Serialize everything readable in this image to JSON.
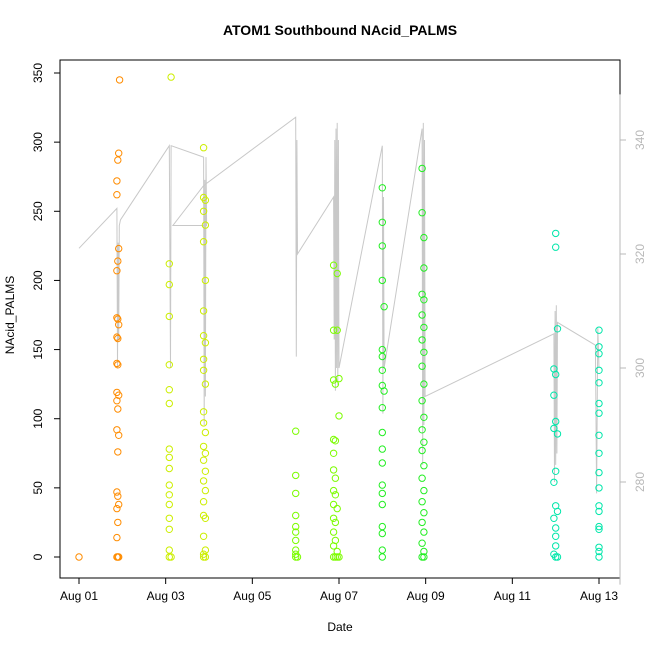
{
  "chart_data": {
    "type": "scatter",
    "title": "ATOM1 Southbound NAcid_PALMS",
    "xlabel": "Date",
    "ylabel": "NAcid_PALMS",
    "xlim": [
      "2016-08-01",
      "2016-08-13"
    ],
    "ylim": [
      0,
      350
    ],
    "x_ticks": [
      "Aug 01",
      "Aug 03",
      "Aug 05",
      "Aug 07",
      "Aug 09",
      "Aug 11",
      "Aug 13"
    ],
    "y_ticks": [
      0,
      50,
      100,
      150,
      200,
      250,
      300,
      350
    ],
    "y2_ticks": [
      280,
      300,
      320,
      340
    ],
    "y2_lim": [
      262,
      348
    ],
    "series": [
      {
        "color": "#ff8c00",
        "points": [
          [
            "2016-08-01T00:00",
            0
          ],
          [
            "2016-08-01T21:00",
            272
          ],
          [
            "2016-08-01T21:30",
            287
          ],
          [
            "2016-08-01T22:00",
            292
          ],
          [
            "2016-08-01T22:30",
            345
          ],
          [
            "2016-08-01T21:00",
            262
          ],
          [
            "2016-08-01T22:00",
            223
          ],
          [
            "2016-08-01T21:30",
            214
          ],
          [
            "2016-08-01T21:00",
            207
          ],
          [
            "2016-08-01T21:00",
            173
          ],
          [
            "2016-08-01T21:30",
            172
          ],
          [
            "2016-08-01T22:00",
            168
          ],
          [
            "2016-08-01T21:00",
            159
          ],
          [
            "2016-08-01T21:30",
            158
          ],
          [
            "2016-08-01T21:00",
            140
          ],
          [
            "2016-08-01T21:30",
            139
          ],
          [
            "2016-08-01T21:00",
            119
          ],
          [
            "2016-08-01T22:00",
            117
          ],
          [
            "2016-08-01T21:00",
            113
          ],
          [
            "2016-08-01T21:30",
            107
          ],
          [
            "2016-08-01T21:00",
            92
          ],
          [
            "2016-08-01T22:00",
            88
          ],
          [
            "2016-08-01T21:30",
            76
          ],
          [
            "2016-08-01T21:00",
            47
          ],
          [
            "2016-08-01T21:30",
            44
          ],
          [
            "2016-08-01T22:00",
            38
          ],
          [
            "2016-08-01T21:00",
            35
          ],
          [
            "2016-08-01T21:30",
            25
          ],
          [
            "2016-08-01T21:00",
            14
          ],
          [
            "2016-08-01T21:00",
            0
          ],
          [
            "2016-08-01T21:30",
            0
          ],
          [
            "2016-08-01T22:00",
            0
          ]
        ]
      },
      {
        "color": "#ccee00",
        "points": [
          [
            "2016-08-03T03:00",
            347
          ],
          [
            "2016-08-03T02:00",
            212
          ],
          [
            "2016-08-03T02:00",
            197
          ],
          [
            "2016-08-03T02:00",
            174
          ],
          [
            "2016-08-03T02:00",
            139
          ],
          [
            "2016-08-03T02:00",
            121
          ],
          [
            "2016-08-03T02:00",
            111
          ],
          [
            "2016-08-03T02:00",
            78
          ],
          [
            "2016-08-03T02:00",
            72
          ],
          [
            "2016-08-03T02:00",
            64
          ],
          [
            "2016-08-03T02:00",
            52
          ],
          [
            "2016-08-03T02:00",
            45
          ],
          [
            "2016-08-03T02:00",
            38
          ],
          [
            "2016-08-03T02:00",
            28
          ],
          [
            "2016-08-03T02:00",
            20
          ],
          [
            "2016-08-03T02:00",
            5
          ],
          [
            "2016-08-03T02:00",
            0
          ],
          [
            "2016-08-03T03:00",
            0
          ],
          [
            "2016-08-03T21:00",
            296
          ],
          [
            "2016-08-03T21:00",
            260
          ],
          [
            "2016-08-03T22:00",
            258
          ],
          [
            "2016-08-03T21:00",
            250
          ],
          [
            "2016-08-03T22:00",
            240
          ],
          [
            "2016-08-03T21:00",
            228
          ],
          [
            "2016-08-03T22:00",
            200
          ],
          [
            "2016-08-03T21:00",
            178
          ],
          [
            "2016-08-03T21:00",
            160
          ],
          [
            "2016-08-03T22:00",
            155
          ],
          [
            "2016-08-03T21:00",
            143
          ],
          [
            "2016-08-03T21:00",
            135
          ],
          [
            "2016-08-03T22:00",
            125
          ],
          [
            "2016-08-03T21:00",
            105
          ],
          [
            "2016-08-03T21:00",
            97
          ],
          [
            "2016-08-03T22:00",
            90
          ],
          [
            "2016-08-03T21:00",
            80
          ],
          [
            "2016-08-03T22:00",
            75
          ],
          [
            "2016-08-03T21:00",
            70
          ],
          [
            "2016-08-03T22:00",
            62
          ],
          [
            "2016-08-03T21:00",
            55
          ],
          [
            "2016-08-03T22:00",
            48
          ],
          [
            "2016-08-03T21:00",
            40
          ],
          [
            "2016-08-03T21:00",
            30
          ],
          [
            "2016-08-03T22:00",
            28
          ],
          [
            "2016-08-03T21:00",
            15
          ],
          [
            "2016-08-03T22:00",
            5
          ],
          [
            "2016-08-03T21:00",
            2
          ],
          [
            "2016-08-03T21:00",
            0
          ],
          [
            "2016-08-03T22:00",
            0
          ]
        ]
      },
      {
        "color": "#7cfc00",
        "points": [
          [
            "2016-08-06T00:00",
            91
          ],
          [
            "2016-08-06T00:00",
            59
          ],
          [
            "2016-08-06T00:00",
            46
          ],
          [
            "2016-08-06T00:00",
            30
          ],
          [
            "2016-08-06T00:00",
            22
          ],
          [
            "2016-08-06T00:00",
            18
          ],
          [
            "2016-08-06T00:00",
            12
          ],
          [
            "2016-08-06T00:00",
            5
          ],
          [
            "2016-08-06T00:00",
            2
          ],
          [
            "2016-08-06T00:00",
            0
          ],
          [
            "2016-08-06T01:00",
            0
          ],
          [
            "2016-08-06T21:00",
            211
          ],
          [
            "2016-08-06T23:00",
            205
          ],
          [
            "2016-08-06T21:00",
            164
          ],
          [
            "2016-08-06T23:00",
            164
          ],
          [
            "2016-08-06T21:00",
            128
          ],
          [
            "2016-08-06T22:00",
            125
          ],
          [
            "2016-08-07T00:00",
            129
          ],
          [
            "2016-08-07T00:00",
            102
          ],
          [
            "2016-08-06T21:00",
            85
          ],
          [
            "2016-08-06T22:00",
            84
          ],
          [
            "2016-08-06T21:00",
            75
          ],
          [
            "2016-08-06T21:00",
            63
          ],
          [
            "2016-08-06T22:00",
            57
          ],
          [
            "2016-08-06T21:00",
            48
          ],
          [
            "2016-08-06T22:00",
            45
          ],
          [
            "2016-08-06T21:00",
            38
          ],
          [
            "2016-08-06T23:00",
            35
          ],
          [
            "2016-08-06T21:00",
            28
          ],
          [
            "2016-08-06T22:00",
            25
          ],
          [
            "2016-08-06T21:00",
            18
          ],
          [
            "2016-08-06T22:00",
            12
          ],
          [
            "2016-08-06T21:00",
            8
          ],
          [
            "2016-08-06T23:00",
            4
          ],
          [
            "2016-08-06T21:00",
            0
          ],
          [
            "2016-08-06T22:00",
            0
          ],
          [
            "2016-08-06T23:00",
            0
          ],
          [
            "2016-08-07T00:00",
            0
          ]
        ]
      },
      {
        "color": "#22ee22",
        "points": [
          [
            "2016-08-08T00:00",
            267
          ],
          [
            "2016-08-08T00:00",
            242
          ],
          [
            "2016-08-08T00:00",
            225
          ],
          [
            "2016-08-08T00:00",
            200
          ],
          [
            "2016-08-08T01:00",
            181
          ],
          [
            "2016-08-08T00:00",
            150
          ],
          [
            "2016-08-08T00:00",
            145
          ],
          [
            "2016-08-08T00:00",
            135
          ],
          [
            "2016-08-08T00:00",
            124
          ],
          [
            "2016-08-08T01:00",
            120
          ],
          [
            "2016-08-08T00:00",
            108
          ],
          [
            "2016-08-08T00:00",
            90
          ],
          [
            "2016-08-08T00:00",
            78
          ],
          [
            "2016-08-08T00:00",
            68
          ],
          [
            "2016-08-08T00:00",
            52
          ],
          [
            "2016-08-08T00:00",
            46
          ],
          [
            "2016-08-08T00:00",
            38
          ],
          [
            "2016-08-08T00:00",
            22
          ],
          [
            "2016-08-08T00:00",
            17
          ],
          [
            "2016-08-08T00:00",
            5
          ],
          [
            "2016-08-08T00:00",
            0
          ],
          [
            "2016-08-08T22:00",
            281
          ],
          [
            "2016-08-08T22:00",
            249
          ],
          [
            "2016-08-08T23:00",
            231
          ],
          [
            "2016-08-08T23:00",
            209
          ],
          [
            "2016-08-08T22:00",
            190
          ],
          [
            "2016-08-08T23:00",
            186
          ],
          [
            "2016-08-08T22:00",
            175
          ],
          [
            "2016-08-08T23:00",
            166
          ],
          [
            "2016-08-08T22:00",
            157
          ],
          [
            "2016-08-08T23:00",
            148
          ],
          [
            "2016-08-08T22:00",
            138
          ],
          [
            "2016-08-08T23:00",
            125
          ],
          [
            "2016-08-08T22:00",
            113
          ],
          [
            "2016-08-08T23:00",
            101
          ],
          [
            "2016-08-08T22:00",
            92
          ],
          [
            "2016-08-08T23:00",
            83
          ],
          [
            "2016-08-08T22:00",
            77
          ],
          [
            "2016-08-08T23:00",
            66
          ],
          [
            "2016-08-08T22:00",
            57
          ],
          [
            "2016-08-08T23:00",
            48
          ],
          [
            "2016-08-08T22:00",
            40
          ],
          [
            "2016-08-08T23:00",
            32
          ],
          [
            "2016-08-08T22:00",
            25
          ],
          [
            "2016-08-08T23:00",
            18
          ],
          [
            "2016-08-08T22:00",
            10
          ],
          [
            "2016-08-08T23:00",
            4
          ],
          [
            "2016-08-08T22:00",
            0
          ],
          [
            "2016-08-08T23:00",
            0
          ]
        ]
      },
      {
        "color": "#00e6aa",
        "points": [
          [
            "2016-08-12T00:00",
            234
          ],
          [
            "2016-08-12T00:00",
            224
          ],
          [
            "2016-08-12T01:00",
            165
          ],
          [
            "2016-08-11T23:00",
            136
          ],
          [
            "2016-08-12T00:00",
            132
          ],
          [
            "2016-08-11T23:00",
            117
          ],
          [
            "2016-08-12T00:00",
            98
          ],
          [
            "2016-08-11T23:00",
            93
          ],
          [
            "2016-08-12T01:00",
            89
          ],
          [
            "2016-08-12T00:00",
            62
          ],
          [
            "2016-08-11T23:00",
            54
          ],
          [
            "2016-08-12T00:00",
            37
          ],
          [
            "2016-08-12T01:00",
            33
          ],
          [
            "2016-08-11T23:00",
            28
          ],
          [
            "2016-08-12T00:00",
            21
          ],
          [
            "2016-08-12T00:00",
            15
          ],
          [
            "2016-08-12T00:00",
            8
          ],
          [
            "2016-08-11T23:00",
            2
          ],
          [
            "2016-08-12T00:00",
            0
          ],
          [
            "2016-08-12T01:00",
            0
          ],
          [
            "2016-08-13T00:00",
            164
          ],
          [
            "2016-08-13T00:00",
            152
          ],
          [
            "2016-08-13T00:00",
            147
          ],
          [
            "2016-08-13T00:00",
            135
          ],
          [
            "2016-08-13T00:00",
            126
          ],
          [
            "2016-08-13T00:00",
            111
          ],
          [
            "2016-08-13T00:00",
            104
          ],
          [
            "2016-08-13T00:00",
            88
          ],
          [
            "2016-08-13T00:00",
            75
          ],
          [
            "2016-08-13T00:00",
            61
          ],
          [
            "2016-08-13T00:00",
            50
          ],
          [
            "2016-08-13T00:00",
            37
          ],
          [
            "2016-08-13T00:00",
            33
          ],
          [
            "2016-08-13T00:00",
            22
          ],
          [
            "2016-08-13T00:00",
            20
          ],
          [
            "2016-08-13T00:00",
            7
          ],
          [
            "2016-08-13T00:00",
            4
          ],
          [
            "2016-08-13T00:00",
            0
          ]
        ]
      }
    ],
    "secondary_line": {
      "color": "#c8c8c8",
      "axis": "right",
      "points": [
        [
          "2016-08-01T00:00",
          321
        ],
        [
          "2016-08-01T21:00",
          328
        ],
        [
          "2016-08-01T21:20",
          300
        ],
        [
          "2016-08-01T21:40",
          322
        ],
        [
          "2016-08-01T22:00",
          305
        ],
        [
          "2016-08-01T22:20",
          325
        ],
        [
          "2016-08-01T23:00",
          326
        ],
        [
          "2016-08-03T02:00",
          339
        ],
        [
          "2016-08-03T02:40",
          300
        ],
        [
          "2016-08-03T03:00",
          339
        ],
        [
          "2016-08-03T21:00",
          337
        ],
        [
          "2016-08-03T21:20",
          290
        ],
        [
          "2016-08-03T21:40",
          333
        ],
        [
          "2016-08-03T22:00",
          295
        ],
        [
          "2016-08-03T22:20",
          337
        ],
        [
          "2016-08-03T22:40",
          325
        ],
        [
          "2016-08-03T04:00",
          325
        ],
        [
          "2016-08-03T21:00",
          332
        ],
        [
          "2016-08-06T00:00",
          344
        ],
        [
          "2016-08-06T00:20",
          302
        ],
        [
          "2016-08-06T00:40",
          340
        ],
        [
          "2016-08-06T01:00",
          320
        ],
        [
          "2016-08-06T21:00",
          330
        ],
        [
          "2016-08-06T21:20",
          305
        ],
        [
          "2016-08-06T21:40",
          340
        ],
        [
          "2016-08-06T22:00",
          296
        ],
        [
          "2016-08-06T22:20",
          342
        ],
        [
          "2016-08-06T22:40",
          300
        ],
        [
          "2016-08-06T23:00",
          343
        ],
        [
          "2016-08-06T23:20",
          297
        ],
        [
          "2016-08-06T23:40",
          340
        ],
        [
          "2016-08-07T00:00",
          300
        ],
        [
          "2016-08-08T00:00",
          339
        ],
        [
          "2016-08-08T00:20",
          292
        ],
        [
          "2016-08-08T00:40",
          330
        ],
        [
          "2016-08-08T01:00",
          300
        ],
        [
          "2016-08-08T22:00",
          342
        ],
        [
          "2016-08-08T22:20",
          283
        ],
        [
          "2016-08-08T22:40",
          343
        ],
        [
          "2016-08-08T23:00",
          290
        ],
        [
          "2016-08-08T23:20",
          340
        ],
        [
          "2016-08-08T23:40",
          295
        ],
        [
          "2016-08-11T23:00",
          306
        ],
        [
          "2016-08-11T23:20",
          280
        ],
        [
          "2016-08-11T23:40",
          310
        ],
        [
          "2016-08-12T00:00",
          283
        ],
        [
          "2016-08-12T00:20",
          311
        ],
        [
          "2016-08-12T00:40",
          285
        ],
        [
          "2016-08-12T01:00",
          308
        ],
        [
          "2016-08-12T22:00",
          304
        ],
        [
          "2016-08-12T22:40",
          278
        ],
        [
          "2016-08-12T23:20",
          307
        ],
        [
          "2016-08-13T00:00",
          300
        ]
      ]
    },
    "grid": false,
    "legend": "none"
  }
}
